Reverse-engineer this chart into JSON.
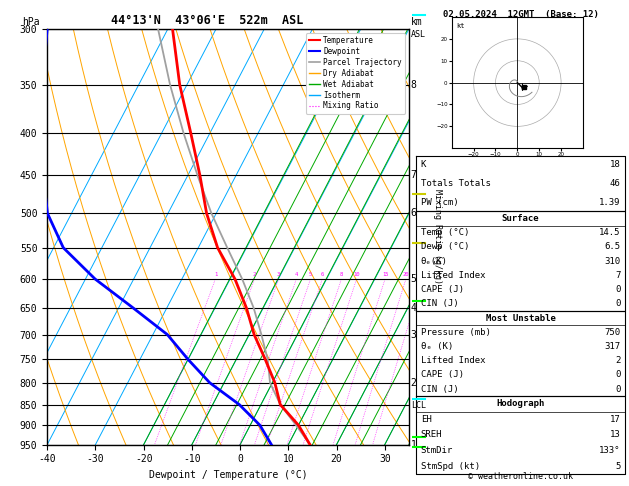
{
  "title_left": "44°13'N  43°06'E  522m  ASL",
  "title_right": "02.05.2024  12GMT  (Base: 12)",
  "xlabel": "Dewpoint / Temperature (°C)",
  "ylabel_left": "hPa",
  "pressure_levels": [
    300,
    350,
    400,
    450,
    500,
    550,
    600,
    650,
    700,
    750,
    800,
    850,
    900,
    950
  ],
  "p_min": 300,
  "p_max": 950,
  "t_min": -40,
  "t_max": 35,
  "temp_profile_p": [
    950,
    900,
    850,
    800,
    750,
    700,
    650,
    600,
    550,
    500,
    450,
    400,
    350,
    300
  ],
  "temp_profile_t": [
    14.5,
    10.0,
    4.0,
    0.5,
    -4.0,
    -9.0,
    -13.5,
    -19.0,
    -26.0,
    -32.0,
    -37.5,
    -44.0,
    -51.5,
    -59.0
  ],
  "dewp_profile_p": [
    950,
    900,
    850,
    800,
    750,
    700,
    650,
    600,
    550,
    500,
    450,
    400,
    350,
    300
  ],
  "dewp_profile_t": [
    6.5,
    2.0,
    -4.5,
    -13.0,
    -20.0,
    -27.0,
    -37.0,
    -48.0,
    -58.0,
    -65.0,
    -70.0,
    -75.0,
    -80.0,
    -85.0
  ],
  "parcel_profile_p": [
    950,
    900,
    850,
    800,
    750,
    700,
    650,
    600,
    550,
    500,
    450,
    400,
    350,
    300
  ],
  "parcel_profile_t": [
    14.5,
    9.5,
    4.0,
    -0.5,
    -3.5,
    -7.5,
    -12.0,
    -17.5,
    -24.0,
    -31.0,
    -38.0,
    -45.5,
    -53.5,
    -62.0
  ],
  "skew_factor": 45,
  "temp_color": "#ff0000",
  "dewp_color": "#0000ff",
  "parcel_color": "#a0a0a0",
  "dry_adiabat_color": "#ffa500",
  "wet_adiabat_color": "#00aa00",
  "isotherm_color": "#00aaff",
  "mixing_ratio_color": "#ff00ff",
  "grid_color": "#000000",
  "info_K": 18,
  "info_TT": 46,
  "info_PW": 1.39,
  "info_surf_temp": 14.5,
  "info_surf_dewp": 6.5,
  "info_surf_theta_e": 310,
  "info_surf_li": 7,
  "info_surf_cape": 0,
  "info_surf_cin": 0,
  "info_mu_pressure": 750,
  "info_mu_theta_e": 317,
  "info_mu_li": 2,
  "info_mu_cape": 0,
  "info_mu_cin": 0,
  "info_EH": 17,
  "info_SREH": 13,
  "info_StmDir": "133°",
  "info_StmSpd": 5,
  "copyright": "© weatheronline.co.uk",
  "km_labels": {
    "350": "8",
    "450": "7",
    "500": "6",
    "600": "5",
    "650": "4",
    "700": "3",
    "800": "2",
    "950": "1"
  },
  "lcl_pressure": 853
}
